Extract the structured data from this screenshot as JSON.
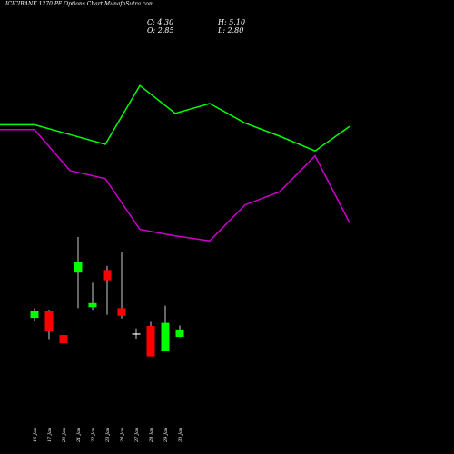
{
  "title": "ICICIBANK 1270 PE Options Chart MunafaSutra.com",
  "ohlc": {
    "close": "C: 4.30",
    "open": "O: 2.85",
    "high": "H: 5.10",
    "low": "L: 2.80"
  },
  "colors": {
    "background": "#000000",
    "up": "#00ff00",
    "down": "#ff0000",
    "neutral": "#ffffff",
    "line_green": "#00ff00",
    "line_magenta": "#cc00cc"
  },
  "chart_data": {
    "type": "candlestick",
    "title": "ICICIBANK 1270 PE Options Chart MunafaSutra.com",
    "dates": [
      "16 Jan",
      "17 Jan",
      "20 Jan",
      "21 Jan",
      "22 Jan",
      "23 Jan",
      "24 Jan",
      "27 Jan",
      "28 Jan",
      "29 Jan",
      "30 Jan"
    ],
    "candles": [
      {
        "date": "16 Jan",
        "open": 6.6,
        "high": 8.5,
        "low": 6.0,
        "close": 8.0
      },
      {
        "date": "17 Jan",
        "open": 8.0,
        "high": 8.2,
        "low": 2.4,
        "close": 4.0
      },
      {
        "date": "20 Jan",
        "open": 3.2,
        "high": 3.2,
        "low": 1.6,
        "close": 1.6
      },
      {
        "date": "21 Jan",
        "open": 15.5,
        "high": 22.5,
        "low": 8.5,
        "close": 17.5
      },
      {
        "date": "22 Jan",
        "open": 8.7,
        "high": 13.5,
        "low": 8.2,
        "close": 9.5
      },
      {
        "date": "23 Jan",
        "open": 16.0,
        "high": 16.8,
        "low": 7.2,
        "close": 14.0
      },
      {
        "date": "24 Jan",
        "open": 8.5,
        "high": 19.5,
        "low": 6.5,
        "close": 7.0
      },
      {
        "date": "27 Jan",
        "open": 3.5,
        "high": 4.5,
        "low": 2.5,
        "close": 3.5
      },
      {
        "date": "28 Jan",
        "open": 5.0,
        "high": 5.8,
        "low": -1.0,
        "close": -1.0
      },
      {
        "date": "29 Jan",
        "open": 0.0,
        "high": 9.0,
        "low": 0.0,
        "close": 5.6
      },
      {
        "date": "30 Jan",
        "open": 2.85,
        "high": 5.1,
        "low": 2.8,
        "close": 4.3
      }
    ],
    "lines": [
      {
        "color": "#00ff00",
        "x": [
          0,
          1,
          2,
          3,
          4,
          5,
          6,
          7,
          8,
          9,
          10
        ],
        "y": [
          62,
          62,
          56,
          50,
          86,
          69,
          75,
          63,
          55,
          46,
          61
        ]
      },
      {
        "color": "#cc00cc",
        "x": [
          0,
          1,
          2,
          3,
          4,
          5,
          6,
          7,
          8,
          9,
          10
        ],
        "y": [
          59,
          59,
          34,
          29,
          -2,
          -6,
          -9,
          13,
          21,
          43,
          2
        ]
      }
    ]
  }
}
